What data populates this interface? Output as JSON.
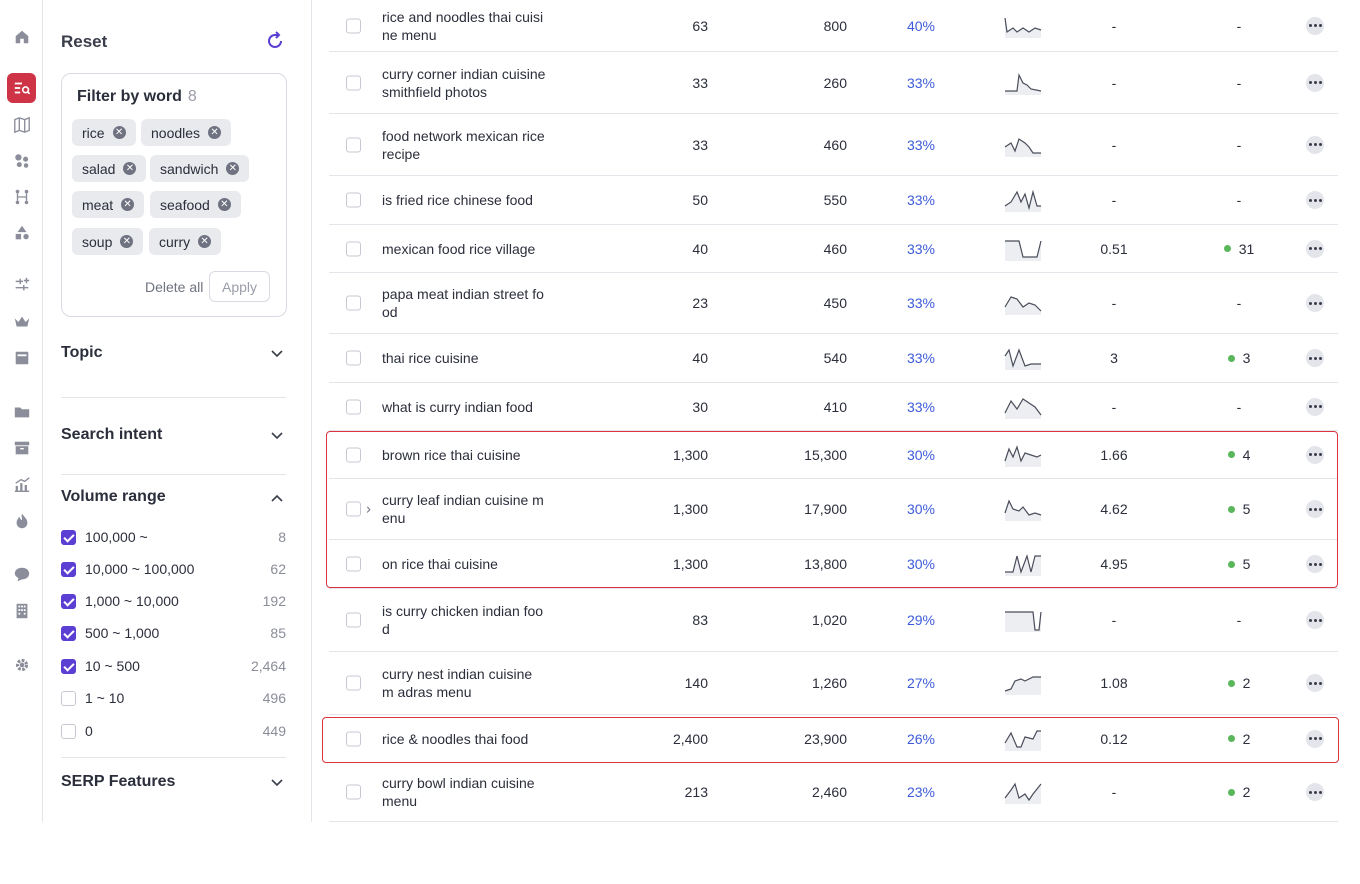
{
  "rail": {
    "icons": [
      "home-icon",
      "keyword-search-icon",
      "map-icon",
      "dots-cluster-icon",
      "git-branch-icon",
      "shapes-icon",
      "tune-icon",
      "crown-icon",
      "card-icon",
      "folder-icon",
      "archive-icon",
      "chart-icon",
      "flame-icon",
      "chat-icon",
      "building-icon",
      "settings-icon"
    ]
  },
  "panel": {
    "reset_label": "Reset",
    "filter_by_word": {
      "title": "Filter by word",
      "count": "8",
      "tags": [
        "rice",
        "noodles",
        "salad",
        "sandwich",
        "meat",
        "seafood",
        "soup",
        "curry"
      ],
      "delete_all": "Delete all",
      "apply": "Apply"
    },
    "topic": "Topic",
    "search_intent": "Search intent",
    "volume_range": {
      "title": "Volume range",
      "rows": [
        {
          "label": "100,000 ~",
          "count": "8",
          "checked": true
        },
        {
          "label": "10,000 ~ 100,000",
          "count": "62",
          "checked": true
        },
        {
          "label": "1,000 ~ 10,000",
          "count": "192",
          "checked": true
        },
        {
          "label": "500 ~ 1,000",
          "count": "85",
          "checked": true
        },
        {
          "label": "10 ~ 500",
          "count": "2,464",
          "checked": true
        },
        {
          "label": "1 ~ 10",
          "count": "496",
          "checked": false
        },
        {
          "label": "0",
          "count": "449",
          "checked": false
        }
      ]
    },
    "serp_features": "SERP Features"
  },
  "table": {
    "rows": [
      {
        "keyword": "rice and noodles thai cuisi ne menu",
        "volume": "63",
        "global_volume": "800",
        "kd": "40%",
        "cpc": "-",
        "results": "-",
        "dot": false
      },
      {
        "keyword": "curry corner indian cuisine smithfield photos",
        "volume": "33",
        "global_volume": "260",
        "kd": "33%",
        "cpc": "-",
        "results": "-",
        "dot": false
      },
      {
        "keyword": "food network mexican rice recipe",
        "volume": "33",
        "global_volume": "460",
        "kd": "33%",
        "cpc": "-",
        "results": "-",
        "dot": false
      },
      {
        "keyword": "is fried rice chinese food",
        "volume": "50",
        "global_volume": "550",
        "kd": "33%",
        "cpc": "-",
        "results": "-",
        "dot": false
      },
      {
        "keyword": "mexican food rice village",
        "volume": "40",
        "global_volume": "460",
        "kd": "33%",
        "cpc": "0.51",
        "results": "31",
        "dot": true
      },
      {
        "keyword": "papa meat indian street fo od",
        "volume": "23",
        "global_volume": "450",
        "kd": "33%",
        "cpc": "-",
        "results": "-",
        "dot": false
      },
      {
        "keyword": "thai rice cuisine",
        "volume": "40",
        "global_volume": "540",
        "kd": "33%",
        "cpc": "3",
        "results": "3",
        "dot": true
      },
      {
        "keyword": "what is curry indian food",
        "volume": "30",
        "global_volume": "410",
        "kd": "33%",
        "cpc": "-",
        "results": "-",
        "dot": false
      },
      {
        "keyword": "brown rice thai cuisine",
        "volume": "1,300",
        "global_volume": "15,300",
        "kd": "30%",
        "cpc": "1.66",
        "results": "4",
        "dot": true
      },
      {
        "keyword": "curry leaf indian cuisine m enu",
        "volume": "1,300",
        "global_volume": "17,900",
        "kd": "30%",
        "cpc": "4.62",
        "results": "5",
        "dot": true,
        "expand": "›"
      },
      {
        "keyword": "on rice thai cuisine",
        "volume": "1,300",
        "global_volume": "13,800",
        "kd": "30%",
        "cpc": "4.95",
        "results": "5",
        "dot": true
      },
      {
        "keyword": "is curry chicken indian foo d",
        "volume": "83",
        "global_volume": "1,020",
        "kd": "29%",
        "cpc": "-",
        "results": "-",
        "dot": false
      },
      {
        "keyword": "curry nest indian cuisine m adras menu",
        "volume": "140",
        "global_volume": "1,260",
        "kd": "27%",
        "cpc": "1.08",
        "results": "2",
        "dot": true
      },
      {
        "keyword": "rice & noodles thai food",
        "volume": "2,400",
        "global_volume": "23,900",
        "kd": "26%",
        "cpc": "0.12",
        "results": "2",
        "dot": true
      },
      {
        "keyword": "curry bowl indian cuisine menu",
        "volume": "213",
        "global_volume": "2,460",
        "kd": "23%",
        "cpc": "-",
        "results": "2",
        "dot": true
      }
    ]
  }
}
